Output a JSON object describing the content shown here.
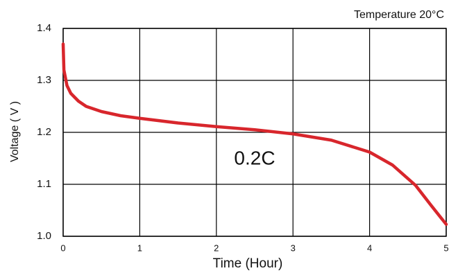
{
  "chart_data": {
    "type": "line",
    "annotations": [
      "Temperature 20°C",
      "0.2C"
    ],
    "xlabel": "Time (Hour)",
    "ylabel": "Voltage ( V )",
    "x": [
      0,
      0.01,
      0.05,
      0.1,
      0.2,
      0.3,
      0.5,
      0.75,
      1.0,
      1.5,
      2.0,
      2.5,
      3.0,
      3.5,
      4.0,
      4.3,
      4.6,
      4.8,
      5.0
    ],
    "series": [
      {
        "name": "0.2C",
        "color": "#d8262c",
        "values": [
          1.37,
          1.32,
          1.29,
          1.275,
          1.26,
          1.25,
          1.24,
          1.232,
          1.227,
          1.218,
          1.211,
          1.205,
          1.197,
          1.185,
          1.162,
          1.137,
          1.098,
          1.06,
          1.023
        ]
      }
    ],
    "xlim": [
      0,
      5
    ],
    "xticks": [
      0,
      1,
      2,
      3,
      4,
      5
    ],
    "ylim": [
      1.0,
      1.4
    ],
    "yticks": [
      {
        "value": 1,
        "label": "1.0"
      },
      1.1,
      1.2,
      1.3,
      1.4
    ],
    "grid": true
  }
}
